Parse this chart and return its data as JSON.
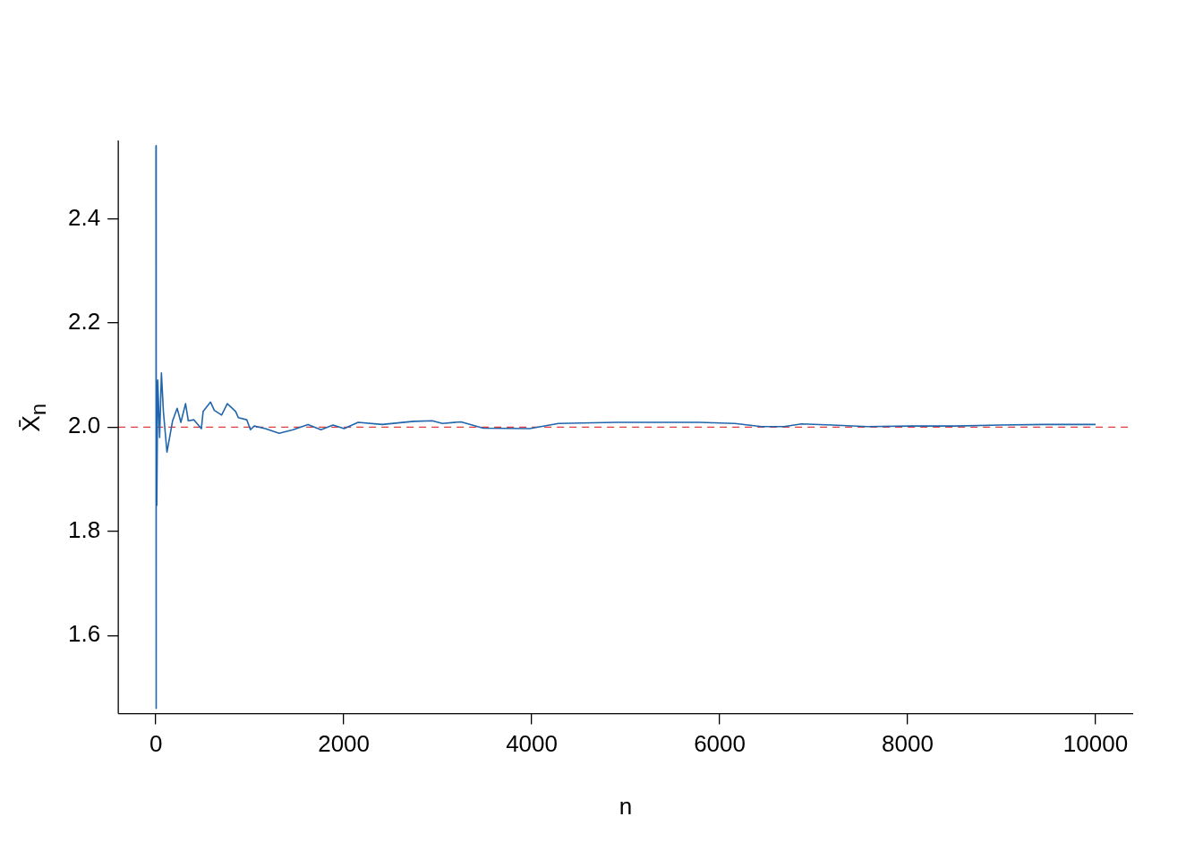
{
  "chart_data": {
    "type": "line",
    "xlabel": "n",
    "ylabel": "X̄$_{n}$",
    "xlim": [
      -400,
      10400
    ],
    "ylim": [
      1.45,
      2.55
    ],
    "xticks": [
      0,
      2000,
      4000,
      6000,
      8000,
      10000
    ],
    "yticks": [
      {
        "value": 1.6,
        "label": "1.6"
      },
      {
        "value": 1.8,
        "label": "1.8"
      },
      {
        "value": 2,
        "label": "2.0"
      },
      {
        "value": 2.2,
        "label": "2.2"
      },
      {
        "value": 2.4,
        "label": "2.4"
      }
    ],
    "grid": false,
    "legend": false,
    "marker": "none",
    "line_style": "solid",
    "ref_lines": [
      {
        "axis": "y",
        "value": 2,
        "color": "#e03c3c",
        "line_style": "dashed"
      }
    ],
    "series": [
      {
        "color": "#2166ac",
        "x": [
          1,
          2,
          5,
          10,
          20,
          40,
          59,
          80,
          118,
          178,
          227,
          266,
          316,
          345,
          405,
          484,
          503,
          582,
          622,
          700,
          760,
          849,
          878,
          967,
          1007,
          1046,
          1165,
          1312,
          1460,
          1619,
          1757,
          1885,
          2003,
          2152,
          2408,
          2744,
          2941,
          3050,
          3247,
          3484,
          3978,
          4284,
          4896,
          5320,
          5784,
          6160,
          6445,
          6683,
          6870,
          7195,
          7571,
          8044,
          8508,
          8982,
          9455,
          10000
        ],
        "values": [
          2.54,
          1.46,
          2.11,
          1.85,
          2.09,
          1.98,
          2.104,
          2.03,
          1.952,
          2.012,
          2.036,
          2.009,
          2.045,
          2.012,
          2.014,
          1.997,
          2.03,
          2.048,
          2.032,
          2.023,
          2.045,
          2.03,
          2.018,
          2.014,
          1.995,
          2.002,
          1.997,
          1.988,
          1.995,
          2.005,
          1.995,
          2.004,
          1.997,
          2.009,
          2.005,
          2.011,
          2.012,
          2.007,
          2.01,
          1.998,
          1.997,
          2.007,
          2.009,
          2.009,
          2.009,
          2.007,
          2.001,
          2.001,
          2.006,
          2.004,
          2.001,
          2.002,
          2.002,
          2.004,
          2.005,
          2.005
        ]
      }
    ]
  }
}
